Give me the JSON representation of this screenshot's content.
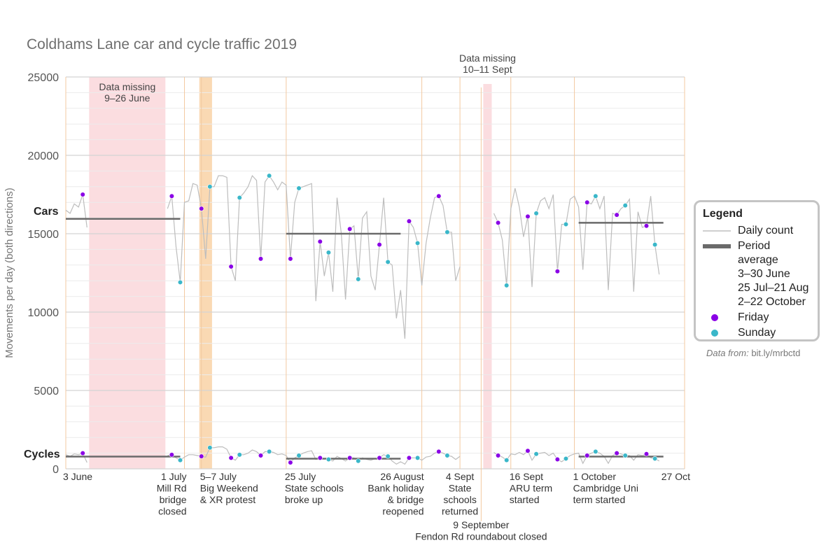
{
  "legend": {
    "title": "Legend",
    "daily": "Daily count",
    "period": "Period average",
    "periods": [
      "3–30 June",
      "25 Jul–21 Aug",
      "2–22 October"
    ],
    "friday": "Friday",
    "sunday": "Sunday"
  },
  "source": {
    "prefix": "Data from:",
    "link": "bit.ly/mrbctd"
  },
  "colors": {
    "friday": "#8a00e6",
    "sunday": "#3ab7c9",
    "daily": "#bdbdbd",
    "average": "#6a6a6a",
    "event_band": "#fad9b3",
    "missing_band": "#fbdde0"
  },
  "chart_data": {
    "type": "line",
    "title": "Coldhams Lane car and cycle traffic 2019",
    "xlabel": "",
    "ylabel": "Movements per day (both directions)",
    "ylim": [
      0,
      25000
    ],
    "yticks": [
      0,
      5000,
      10000,
      15000,
      20000,
      25000
    ],
    "xlim": [
      "2019-06-03",
      "2019-10-27"
    ],
    "series_labels": {
      "cars": "Cars",
      "cycles": "Cycles"
    },
    "missing_data": [
      {
        "label": [
          "Data missing",
          "9–26 June"
        ],
        "start": "2019-06-09",
        "end": "2019-06-26"
      },
      {
        "label": [
          "Data missing",
          "10–11 Sept"
        ],
        "start": "2019-09-10",
        "end": "2019-09-11"
      }
    ],
    "event_bands": [
      {
        "start": "2019-07-05",
        "end": "2019-07-07"
      }
    ],
    "events": [
      {
        "date": "2019-06-03",
        "label": [
          "3 June"
        ]
      },
      {
        "date": "2019-07-01",
        "label": [
          "1 July",
          "Mill Rd",
          "bridge",
          "closed"
        ]
      },
      {
        "date": "2019-07-05",
        "label": [
          "5–7 July",
          "Big Weekend",
          "& XR protest"
        ]
      },
      {
        "date": "2019-07-25",
        "label": [
          "25 July",
          "State schools",
          "broke up"
        ]
      },
      {
        "date": "2019-08-26",
        "label": [
          "26 August",
          "Bank holiday",
          "& bridge",
          "reopened"
        ]
      },
      {
        "date": "2019-09-04",
        "label": [
          "4 Sept",
          "State",
          "schools",
          "returned"
        ]
      },
      {
        "date": "2019-09-09",
        "label": [
          "9 September",
          "Fendon Rd roundabout closed"
        ]
      },
      {
        "date": "2019-09-16",
        "label": [
          "16 Sept",
          "ARU term",
          "started"
        ]
      },
      {
        "date": "2019-10-01",
        "label": [
          "1 October",
          "Cambridge Uni",
          "term started"
        ]
      },
      {
        "date": "2019-10-27",
        "label": [
          "27 Oct"
        ]
      }
    ],
    "averages": {
      "cars": [
        {
          "start": "2019-06-03",
          "end": "2019-06-30",
          "value": 15950
        },
        {
          "start": "2019-07-25",
          "end": "2019-08-21",
          "value": 15000
        },
        {
          "start": "2019-10-02",
          "end": "2019-10-22",
          "value": 15700
        }
      ],
      "cycles": [
        {
          "start": "2019-06-03",
          "end": "2019-06-30",
          "value": 780
        },
        {
          "start": "2019-07-25",
          "end": "2019-08-21",
          "value": 650
        },
        {
          "start": "2019-10-02",
          "end": "2019-10-22",
          "value": 780
        }
      ]
    },
    "series": [
      {
        "name": "Cars",
        "segments": [
          {
            "start": "2019-06-03",
            "values": [
              16500,
              16300,
              16900,
              16700,
              17500,
              15400
            ]
          },
          {
            "start": "2019-06-27",
            "values": [
              16600,
              17400,
              14200,
              11900,
              17000,
              17100,
              18200,
              18100,
              16600,
              13400,
              18000,
              18000,
              18700,
              18700,
              18600,
              12900,
              12000,
              17300,
              17600,
              18000,
              18700,
              18400,
              13400,
              18300,
              18700,
              18300,
              17800,
              18300,
              18100,
              13400,
              17000,
              17900,
              18000,
              18100,
              18200,
              10700,
              14500,
              12300,
              13800,
              11300,
              17300,
              15000,
              10800,
              15300,
              15500,
              12100,
              16000,
              16400,
              12300,
              11400,
              14300,
              17300,
              13200,
              13000,
              9600,
              11400,
              8300,
              15800,
              15400,
              14400,
              11700,
              14400,
              16000,
              17300,
              17400,
              16800,
              15100,
              15100,
              12000,
              12900
            ]
          },
          {
            "start": "2019-09-12",
            "values": [
              16300,
              15700,
              14600,
              11700,
              16600,
              17900,
              16700,
              14800,
              16100,
              11600,
              16300,
              17100,
              17300,
              16600,
              17500,
              12600,
              15600,
              15600,
              17200,
              17400,
              16700,
              12700,
              17000,
              16900,
              17400,
              16600,
              17400,
              11400,
              16300,
              16200,
              16600,
              16800,
              17200,
              11300,
              16400,
              15400,
              15500,
              17400,
              14300,
              12400
            ]
          }
        ]
      },
      {
        "name": "Cycles",
        "segments": [
          {
            "start": "2019-06-03",
            "values": [
              900,
              800,
              950,
              900,
              1000,
              400
            ]
          },
          {
            "start": "2019-06-27",
            "values": [
              850,
              900,
              700,
              550,
              750,
              900,
              900,
              850,
              800,
              750,
              1350,
              1350,
              1400,
              1400,
              1250,
              700,
              550,
              900,
              900,
              1000,
              1200,
              1100,
              850,
              1100,
              1100,
              1050,
              900,
              950,
              850,
              400,
              700,
              850,
              1000,
              1100,
              1150,
              600,
              700,
              650,
              600,
              500,
              800,
              650,
              500,
              700,
              700,
              500,
              700,
              600,
              550,
              650,
              700,
              900,
              800,
              500,
              300,
              450,
              300,
              700,
              700,
              700,
              550,
              750,
              800,
              1000,
              1100,
              1000,
              850,
              800,
              600,
              800
            ]
          },
          {
            "start": "2019-09-12",
            "values": [
              1050,
              850,
              750,
              550,
              950,
              900,
              1050,
              900,
              1150,
              550,
              950,
              1000,
              1050,
              850,
              1000,
              600,
              450,
              650,
              850,
              950,
              1000,
              350,
              850,
              1000,
              1100,
              1000,
              800,
              350,
              850,
              1000,
              950,
              850,
              850,
              550,
              900,
              850,
              950,
              700,
              650,
              500
            ]
          }
        ]
      }
    ]
  }
}
